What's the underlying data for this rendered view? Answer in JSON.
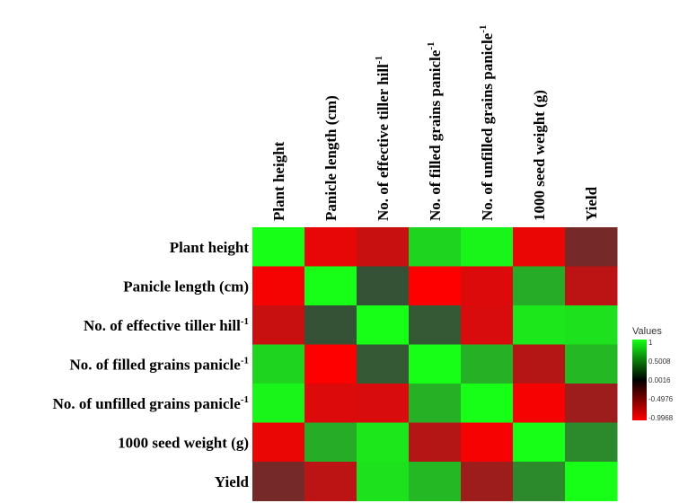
{
  "chart_data": {
    "type": "heatmap",
    "title": "",
    "xlabel": "",
    "ylabel": "",
    "rows": [
      {
        "text": "Plant height",
        "sup": ""
      },
      {
        "text": "Panicle length (cm)",
        "sup": ""
      },
      {
        "text": "No. of effective tiller hill",
        "sup": "-1"
      },
      {
        "text": "No. of filled grains panicle",
        "sup": "-1"
      },
      {
        "text": "No. of unfilled grains panicle",
        "sup": "-1"
      },
      {
        "text": "1000 seed weight (g)",
        "sup": ""
      },
      {
        "text": "Yield",
        "sup": ""
      }
    ],
    "columns": [
      {
        "text": "Plant height",
        "sup": ""
      },
      {
        "text": "Panicle length (cm)",
        "sup": ""
      },
      {
        "text": "No. of effective tiller hill",
        "sup": "-1"
      },
      {
        "text": "No. of filled grains panicle",
        "sup": "-1"
      },
      {
        "text": "No. of unfilled grains panicle",
        "sup": "-1"
      },
      {
        "text": "1000 seed weight (g)",
        "sup": ""
      },
      {
        "text": "Yield",
        "sup": ""
      }
    ],
    "values": [
      [
        1.0,
        -0.88,
        -0.72,
        0.78,
        0.95,
        -0.9,
        -0.3
      ],
      [
        -0.95,
        1.0,
        0.12,
        -1.0,
        -0.82,
        0.58,
        -0.66
      ],
      [
        -0.72,
        0.12,
        1.0,
        0.15,
        -0.8,
        0.88,
        0.85
      ],
      [
        0.78,
        -1.0,
        0.15,
        1.0,
        0.6,
        -0.62,
        0.64
      ],
      [
        0.95,
        -0.82,
        -0.8,
        0.6,
        1.0,
        -0.96,
        -0.5
      ],
      [
        -0.9,
        0.58,
        0.88,
        -0.62,
        -0.96,
        1.0,
        0.4
      ],
      [
        -0.3,
        -0.66,
        0.85,
        0.64,
        -0.5,
        0.4,
        1.0
      ]
    ],
    "legend": {
      "title": "Values",
      "ticks": [
        "1",
        "0.5008",
        "0.0016",
        "-0.4976",
        "-0.9968"
      ],
      "placement": "right"
    },
    "colors": {
      "low": "#ff0000",
      "mid": "#3a3a3a",
      "high": "#17ff17"
    }
  }
}
